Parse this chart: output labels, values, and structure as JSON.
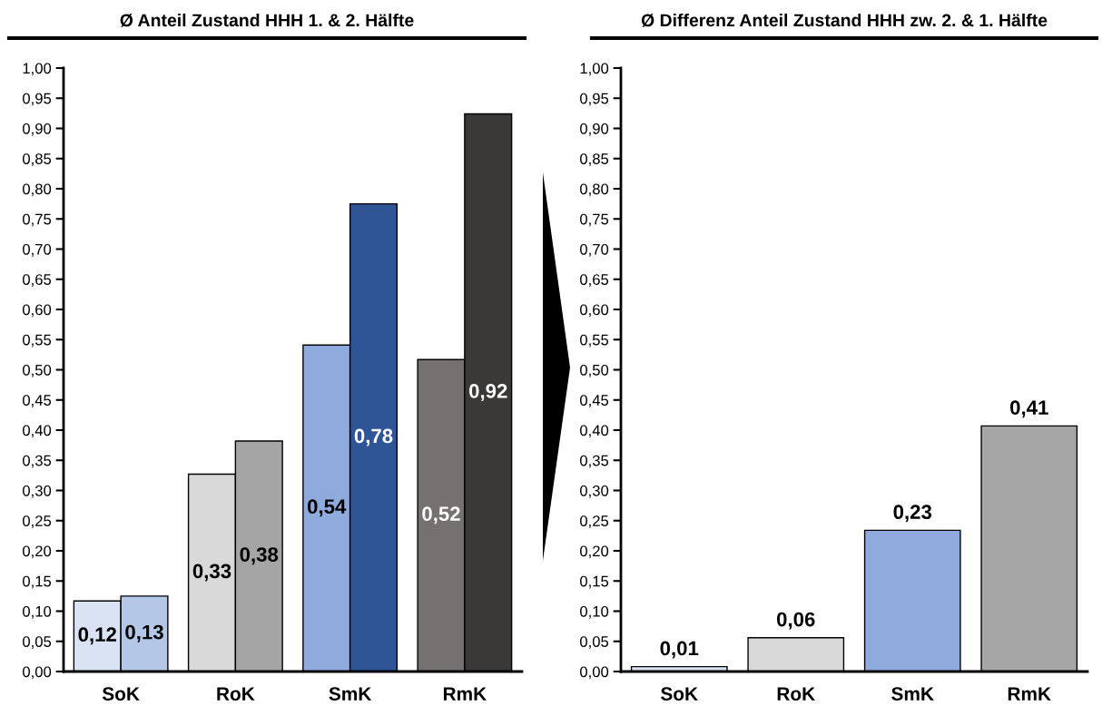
{
  "chart_data": [
    {
      "type": "bar",
      "title": "Ø Anteil Zustand HHH 1. & 2. Hälfte",
      "categories": [
        "SoK",
        "RoK",
        "SmK",
        "RmK"
      ],
      "series": [
        {
          "colors": [
            "#dae3f3",
            "#d9d9d9",
            "#8faadc",
            "#767171"
          ],
          "values": [
            0.117,
            0.327,
            0.541,
            0.517
          ],
          "value_labels": [
            "0,12",
            "0,33",
            "0,54",
            "0,52"
          ]
        },
        {
          "colors": [
            "#b4c7e7",
            "#a5a5a5",
            "#2f5597",
            "#3b3838"
          ],
          "values": [
            0.125,
            0.382,
            0.775,
            0.924
          ],
          "value_labels": [
            "0,13",
            "0,38",
            "0,78",
            "0,92"
          ]
        }
      ],
      "ylim": [
        0,
        1
      ],
      "yticks": [
        {
          "value": 0,
          "label": "0,00"
        },
        {
          "value": 0.05,
          "label": "0,05"
        },
        {
          "value": 0.1,
          "label": "0,10"
        },
        {
          "value": 0.15,
          "label": "0,15"
        },
        {
          "value": 0.2,
          "label": "0,20"
        },
        {
          "value": 0.25,
          "label": "0,25"
        },
        {
          "value": 0.3,
          "label": "0,30"
        },
        {
          "value": 0.35,
          "label": "0,35"
        },
        {
          "value": 0.4,
          "label": "0,40"
        },
        {
          "value": 0.45,
          "label": "0,45"
        },
        {
          "value": 0.5,
          "label": "0,50"
        },
        {
          "value": 0.55,
          "label": "0,55"
        },
        {
          "value": 0.6,
          "label": "0,60"
        },
        {
          "value": 0.65,
          "label": "0,65"
        },
        {
          "value": 0.7,
          "label": "0,70"
        },
        {
          "value": 0.75,
          "label": "0,75"
        },
        {
          "value": 0.8,
          "label": "0,80"
        },
        {
          "value": 0.85,
          "label": "0,85"
        },
        {
          "value": 0.9,
          "label": "0,90"
        },
        {
          "value": 0.95,
          "label": "0,95"
        },
        {
          "value": 1,
          "label": "1,00"
        }
      ],
      "grid": false,
      "legend": false
    },
    {
      "type": "bar",
      "title": "Ø Differenz Anteil Zustand HHH zw. 2. & 1. Hälfte",
      "categories": [
        "SoK",
        "RoK",
        "SmK",
        "RmK"
      ],
      "series": [
        {
          "colors": [
            "#dae3f3",
            "#d9d9d9",
            "#8faadc",
            "#a6a6a6"
          ],
          "values": [
            0.008,
            0.056,
            0.234,
            0.407
          ],
          "value_labels": [
            "0,01",
            "0,06",
            "0,23",
            "0,41"
          ]
        }
      ],
      "ylim": [
        0,
        1
      ],
      "yticks": [
        {
          "value": 0,
          "label": "0,00"
        },
        {
          "value": 0.05,
          "label": "0,05"
        },
        {
          "value": 0.1,
          "label": "0,10"
        },
        {
          "value": 0.15,
          "label": "0,15"
        },
        {
          "value": 0.2,
          "label": "0,20"
        },
        {
          "value": 0.25,
          "label": "0,25"
        },
        {
          "value": 0.3,
          "label": "0,30"
        },
        {
          "value": 0.35,
          "label": "0,35"
        },
        {
          "value": 0.4,
          "label": "0,40"
        },
        {
          "value": 0.45,
          "label": "0,45"
        },
        {
          "value": 0.5,
          "label": "0,50"
        },
        {
          "value": 0.55,
          "label": "0,55"
        },
        {
          "value": 0.6,
          "label": "0,60"
        },
        {
          "value": 0.65,
          "label": "0,65"
        },
        {
          "value": 0.7,
          "label": "0,70"
        },
        {
          "value": 0.75,
          "label": "0,75"
        },
        {
          "value": 0.8,
          "label": "0,80"
        },
        {
          "value": 0.85,
          "label": "0,85"
        },
        {
          "value": 0.9,
          "label": "0,90"
        },
        {
          "value": 0.95,
          "label": "0,95"
        },
        {
          "value": 1,
          "label": "1,00"
        }
      ],
      "grid": false,
      "legend": false
    }
  ]
}
